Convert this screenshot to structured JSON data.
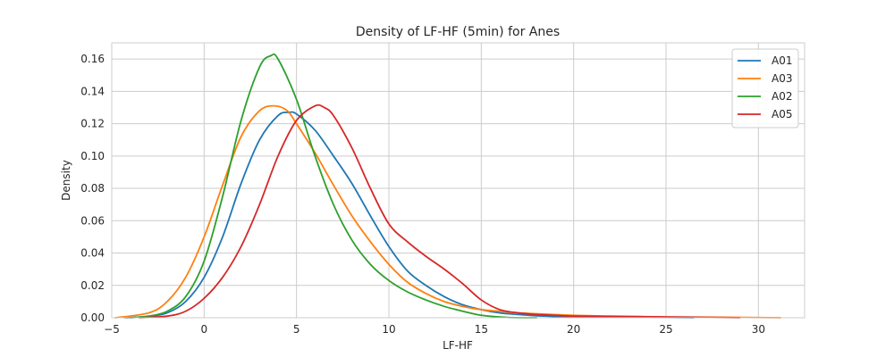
{
  "chart_data": {
    "type": "line",
    "title": "Density of LF-HF (5min) for Anes",
    "xlabel": "LF-HF",
    "ylabel": "Density",
    "xlim": [
      -5.0,
      32.5
    ],
    "ylim": [
      0.0,
      0.17
    ],
    "xticks": [
      -5,
      0,
      5,
      10,
      15,
      20,
      25,
      30
    ],
    "yticks": [
      0.0,
      0.02,
      0.04,
      0.06,
      0.08,
      0.1,
      0.12,
      0.14,
      0.16
    ],
    "xtick_labels": [
      "−5",
      "0",
      "5",
      "10",
      "15",
      "20",
      "25",
      "30"
    ],
    "ytick_labels": [
      "0.00",
      "0.02",
      "0.04",
      "0.06",
      "0.08",
      "0.10",
      "0.12",
      "0.14",
      "0.16"
    ],
    "grid": true,
    "legend_position": "top-right",
    "series": [
      {
        "name": "A01",
        "color": "#1f77b4",
        "points": [
          [
            -4.3,
            0.0
          ],
          [
            -3,
            0.0008
          ],
          [
            -2,
            0.003
          ],
          [
            -1,
            0.01
          ],
          [
            0,
            0.025
          ],
          [
            1,
            0.05
          ],
          [
            2,
            0.083
          ],
          [
            3,
            0.11
          ],
          [
            4,
            0.125
          ],
          [
            4.6,
            0.127
          ],
          [
            5,
            0.126
          ],
          [
            6,
            0.116
          ],
          [
            7,
            0.1
          ],
          [
            8,
            0.083
          ],
          [
            9,
            0.063
          ],
          [
            10,
            0.044
          ],
          [
            11,
            0.029
          ],
          [
            12,
            0.02
          ],
          [
            13,
            0.013
          ],
          [
            14,
            0.008
          ],
          [
            15,
            0.005
          ],
          [
            16,
            0.003
          ],
          [
            17,
            0.002
          ],
          [
            18,
            0.0012
          ],
          [
            19,
            0.0008
          ],
          [
            20,
            0.0005
          ],
          [
            22,
            0.0003
          ],
          [
            24,
            0.0002
          ],
          [
            26.5,
            0.0
          ]
        ]
      },
      {
        "name": "A03",
        "color": "#ff7f0e",
        "points": [
          [
            -4.8,
            0.0
          ],
          [
            -3,
            0.003
          ],
          [
            -2,
            0.01
          ],
          [
            -1,
            0.025
          ],
          [
            0,
            0.05
          ],
          [
            1,
            0.082
          ],
          [
            2,
            0.112
          ],
          [
            3,
            0.128
          ],
          [
            3.8,
            0.131
          ],
          [
            4.5,
            0.128
          ],
          [
            5,
            0.12
          ],
          [
            6,
            0.102
          ],
          [
            7,
            0.082
          ],
          [
            8,
            0.063
          ],
          [
            9,
            0.047
          ],
          [
            10,
            0.033
          ],
          [
            11,
            0.022
          ],
          [
            12,
            0.015
          ],
          [
            13,
            0.01
          ],
          [
            14,
            0.007
          ],
          [
            15,
            0.005
          ],
          [
            16,
            0.004
          ],
          [
            17,
            0.003
          ],
          [
            18,
            0.0025
          ],
          [
            20,
            0.0015
          ],
          [
            22,
            0.001
          ],
          [
            25,
            0.0005
          ],
          [
            28,
            0.0003
          ],
          [
            31.2,
            0.0
          ]
        ]
      },
      {
        "name": "A02",
        "color": "#2ca02c",
        "points": [
          [
            -4.0,
            0.0
          ],
          [
            -3,
            0.001
          ],
          [
            -2,
            0.004
          ],
          [
            -1,
            0.013
          ],
          [
            0,
            0.035
          ],
          [
            1,
            0.075
          ],
          [
            2,
            0.122
          ],
          [
            3,
            0.155
          ],
          [
            3.6,
            0.162
          ],
          [
            4,
            0.16
          ],
          [
            5,
            0.135
          ],
          [
            6,
            0.1
          ],
          [
            7,
            0.07
          ],
          [
            8,
            0.048
          ],
          [
            9,
            0.033
          ],
          [
            10,
            0.023
          ],
          [
            11,
            0.016
          ],
          [
            12,
            0.011
          ],
          [
            13,
            0.007
          ],
          [
            14,
            0.004
          ],
          [
            15,
            0.0015
          ],
          [
            16,
            0.0005
          ],
          [
            17,
            0.0
          ],
          [
            18,
            0.0
          ]
        ]
      },
      {
        "name": "A05",
        "color": "#d62728",
        "points": [
          [
            -3.5,
            0.0
          ],
          [
            -2,
            0.001
          ],
          [
            -1,
            0.004
          ],
          [
            0,
            0.012
          ],
          [
            1,
            0.025
          ],
          [
            2,
            0.044
          ],
          [
            3,
            0.07
          ],
          [
            4,
            0.1
          ],
          [
            5,
            0.122
          ],
          [
            6,
            0.131
          ],
          [
            6.5,
            0.13
          ],
          [
            7,
            0.125
          ],
          [
            8,
            0.105
          ],
          [
            9,
            0.08
          ],
          [
            10,
            0.058
          ],
          [
            11,
            0.047
          ],
          [
            12,
            0.038
          ],
          [
            13,
            0.03
          ],
          [
            14,
            0.021
          ],
          [
            15,
            0.011
          ],
          [
            16,
            0.005
          ],
          [
            17,
            0.003
          ],
          [
            18,
            0.002
          ],
          [
            19,
            0.0015
          ],
          [
            20,
            0.001
          ],
          [
            22,
            0.0008
          ],
          [
            24,
            0.0006
          ],
          [
            26,
            0.0004
          ],
          [
            29,
            0.0
          ]
        ]
      }
    ]
  }
}
